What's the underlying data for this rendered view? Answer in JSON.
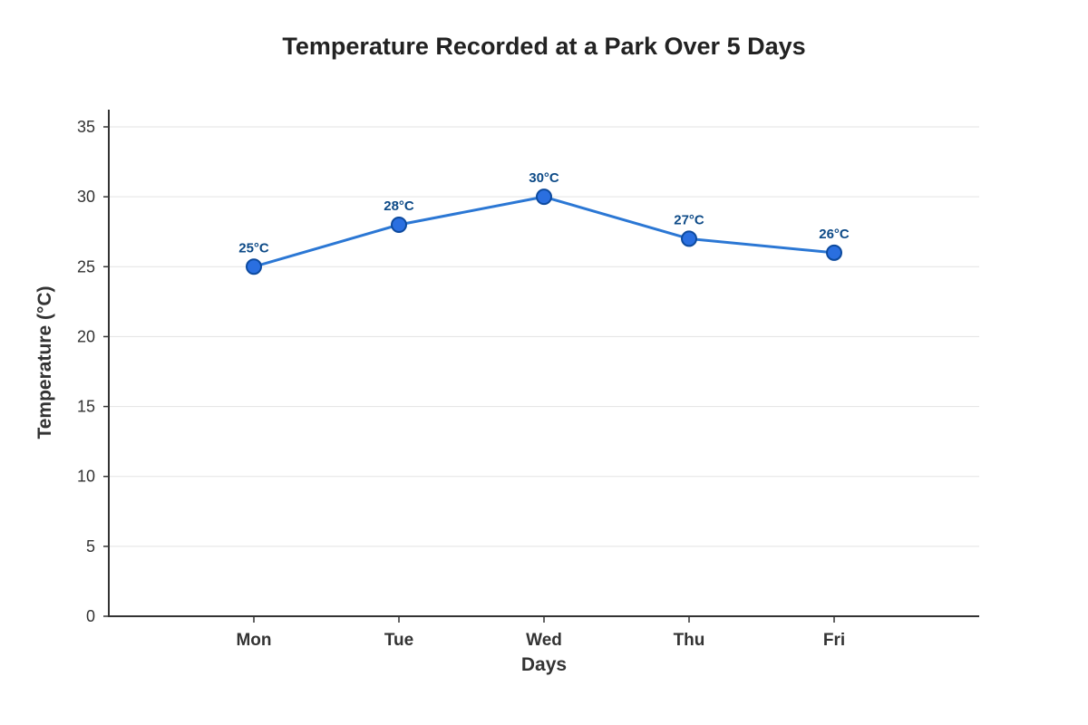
{
  "chart_data": {
    "type": "line",
    "title": "Temperature Recorded at a Park Over 5 Days",
    "xlabel": "Days",
    "ylabel": "Temperature (°C)",
    "categories": [
      "Mon",
      "Tue",
      "Wed",
      "Thu",
      "Fri"
    ],
    "series": [
      {
        "values": [
          25,
          28,
          30,
          27,
          26
        ],
        "data_labels": [
          "25°C",
          "28°C",
          "30°C",
          "27°C",
          "26°C"
        ]
      }
    ],
    "ylim": [
      0,
      35
    ],
    "yticks": [
      0,
      5,
      10,
      15,
      20,
      25,
      30,
      35
    ],
    "grid": "horizontal",
    "legend": "none",
    "colors": {
      "line": "#2b77d4",
      "marker_fill": "#2a6fe0",
      "marker_stroke": "#0d4a9e",
      "data_label": "#0d4a87",
      "axis": "#333333",
      "grid": "#e3e3e3"
    }
  }
}
